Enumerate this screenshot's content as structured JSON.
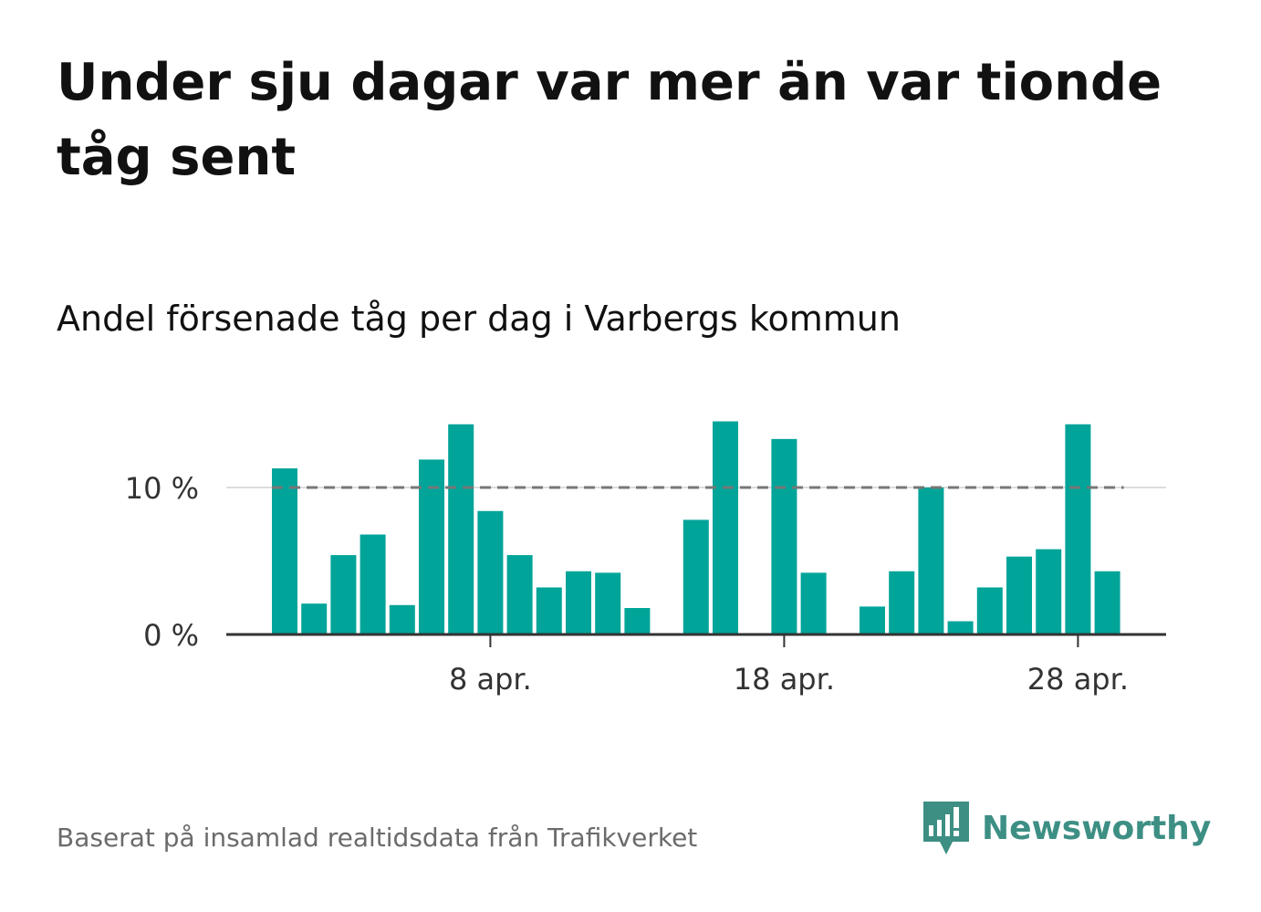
{
  "header": {
    "title": "Under sju dagar var mer än var tionde tåg sent",
    "subtitle": "Andel försenade tåg per dag i Varbergs kommun"
  },
  "footer": {
    "source": "Baserat på insamlad realtidsdata från Trafikverket",
    "brand": "Newsworthy"
  },
  "colors": {
    "bar": "#00a499",
    "brand": "#3d8f84",
    "reference_line": "#777777",
    "grid": "#dddddd",
    "axis": "#333333"
  },
  "icons": {
    "brand_logo": "bar-chart-speech-bubble-icon"
  },
  "chart_data": {
    "type": "bar",
    "x": [
      "1 apr.",
      "2 apr.",
      "3 apr.",
      "4 apr.",
      "5 apr.",
      "6 apr.",
      "7 apr.",
      "8 apr.",
      "9 apr.",
      "10 apr.",
      "11 apr.",
      "12 apr.",
      "13 apr.",
      "14 apr.",
      "15 apr.",
      "16 apr.",
      "17 apr.",
      "18 apr.",
      "19 apr.",
      "20 apr.",
      "21 apr.",
      "22 apr.",
      "23 apr.",
      "24 apr.",
      "25 apr.",
      "26 apr.",
      "27 apr.",
      "28 apr.",
      "29 apr.",
      "30 apr."
    ],
    "values": [
      11.3,
      2.1,
      5.4,
      6.8,
      2.0,
      11.9,
      14.3,
      8.4,
      5.4,
      3.2,
      4.3,
      4.2,
      1.8,
      null,
      7.8,
      14.5,
      null,
      13.3,
      4.2,
      null,
      1.9,
      4.3,
      10.0,
      0.9,
      3.2,
      5.3,
      5.8,
      14.3,
      4.3,
      null
    ],
    "x_ticks": [
      "8 apr.",
      "18 apr.",
      "28 apr."
    ],
    "y_ticks": [
      {
        "value": 0,
        "label": "0 %"
      },
      {
        "value": 10,
        "label": "10 %"
      }
    ],
    "reference_line": 10,
    "ylim": [
      0,
      15
    ],
    "grid": true
  }
}
